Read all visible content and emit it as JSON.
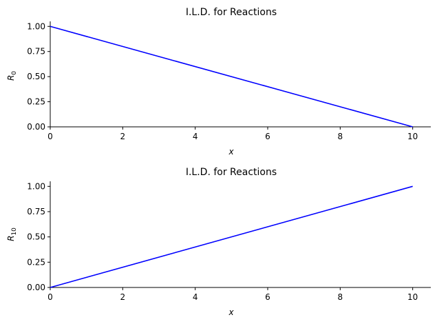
{
  "chart_data": [
    {
      "type": "line",
      "title": "I.L.D. for Reactions",
      "xlabel": "x",
      "ylabel": "R",
      "ylabel_sub": "0",
      "xlim": [
        0,
        10.5
      ],
      "ylim": [
        0,
        1.05
      ],
      "xticks": [
        "0",
        "2",
        "4",
        "6",
        "8",
        "10"
      ],
      "yticks": [
        "0.00",
        "0.25",
        "0.50",
        "0.75",
        "1.00"
      ],
      "grid": false,
      "series_color": "#0000ff",
      "x": [
        0,
        10
      ],
      "y": [
        1,
        0
      ]
    },
    {
      "type": "line",
      "title": "I.L.D. for Reactions",
      "xlabel": "x",
      "ylabel": "R",
      "ylabel_sub": "10",
      "xlim": [
        0,
        10.5
      ],
      "ylim": [
        0,
        1.05
      ],
      "xticks": [
        "0",
        "2",
        "4",
        "6",
        "8",
        "10"
      ],
      "yticks": [
        "0.00",
        "0.25",
        "0.50",
        "0.75",
        "1.00"
      ],
      "grid": false,
      "series_color": "#0000ff",
      "x": [
        0,
        10
      ],
      "y": [
        0,
        1
      ]
    }
  ]
}
